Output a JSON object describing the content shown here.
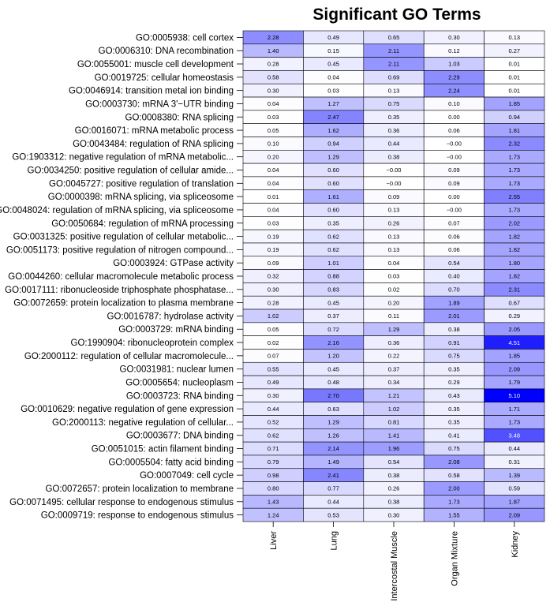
{
  "chart_data": {
    "type": "heatmap",
    "title": "Significant GO Terms",
    "columns": [
      "Liver",
      "Lung",
      "Intercostal Muscle",
      "Organ Mixture",
      "Kidney"
    ],
    "rows": [
      {
        "label": "GO:0005938: cell cortex",
        "values": [
          "2.28",
          "0.49",
          "0.65",
          "0.30",
          "0.13"
        ]
      },
      {
        "label": "GO:0006310: DNA recombination",
        "values": [
          "1.40",
          "0.15",
          "2.11",
          "0.12",
          "0.27"
        ]
      },
      {
        "label": "GO:0055001: muscle cell development",
        "values": [
          "0.28",
          "0.45",
          "2.11",
          "1.03",
          "0.01"
        ]
      },
      {
        "label": "GO:0019725: cellular homeostasis",
        "values": [
          "0.58",
          "0.04",
          "0.69",
          "2.29",
          "0.01"
        ]
      },
      {
        "label": "GO:0046914: transition metal ion binding",
        "values": [
          "0.30",
          "0.03",
          "0.13",
          "2.24",
          "0.01"
        ]
      },
      {
        "label": "GO:0003730: mRNA 3'−UTR binding",
        "values": [
          "0.04",
          "1.27",
          "0.75",
          "0.10",
          "1.85"
        ]
      },
      {
        "label": "GO:0008380: RNA splicing",
        "values": [
          "0.03",
          "2.47",
          "0.35",
          "0.00",
          "0.94"
        ]
      },
      {
        "label": "GO:0016071: mRNA metabolic process",
        "values": [
          "0.05",
          "1.62",
          "0.36",
          "0.06",
          "1.81"
        ]
      },
      {
        "label": "GO:0043484: regulation of RNA splicing",
        "values": [
          "0.10",
          "0.94",
          "0.44",
          "−0.00",
          "2.32"
        ]
      },
      {
        "label": "GO:1903312: negative regulation of mRNA metabolic...",
        "values": [
          "0.20",
          "1.29",
          "0.38",
          "−0.00",
          "1.73"
        ]
      },
      {
        "label": "GO:0034250: positive regulation of cellular amide...",
        "values": [
          "0.04",
          "0.60",
          "−0.00",
          "0.09",
          "1.73"
        ]
      },
      {
        "label": "GO:0045727: positive regulation of translation",
        "values": [
          "0.04",
          "0.60",
          "−0.00",
          "0.09",
          "1.73"
        ]
      },
      {
        "label": "GO:0000398: mRNA splicing, via spliceosome",
        "values": [
          "0.01",
          "1.61",
          "0.09",
          "0.00",
          "2.55"
        ]
      },
      {
        "label": "GO:0048024: regulation of mRNA splicing, via spliceosome",
        "values": [
          "0.04",
          "0.60",
          "0.13",
          "−0.00",
          "1.73"
        ]
      },
      {
        "label": "GO:0050684: regulation of mRNA processing",
        "values": [
          "0.03",
          "0.35",
          "0.26",
          "0.07",
          "2.02"
        ]
      },
      {
        "label": "GO:0031325: positive regulation of cellular metabolic...",
        "values": [
          "0.19",
          "0.62",
          "0.13",
          "0.06",
          "1.82"
        ]
      },
      {
        "label": "GO:0051173: positive regulation of nitrogen compound...",
        "values": [
          "0.19",
          "0.62",
          "0.13",
          "0.06",
          "1.82"
        ]
      },
      {
        "label": "GO:0003924: GTPase activity",
        "values": [
          "0.09",
          "1.01",
          "0.04",
          "0.54",
          "1.80"
        ]
      },
      {
        "label": "GO:0044260: cellular macromolecule metabolic process",
        "values": [
          "0.32",
          "0.88",
          "0.03",
          "0.40",
          "1.82"
        ]
      },
      {
        "label": "GO:0017111: ribonucleoside triphosphate phosphatase...",
        "values": [
          "0.30",
          "0.83",
          "0.02",
          "0.70",
          "2.31"
        ]
      },
      {
        "label": "GO:0072659: protein localization to plasma membrane",
        "values": [
          "0.28",
          "0.45",
          "0.20",
          "1.89",
          "0.67"
        ]
      },
      {
        "label": "GO:0016787: hydrolase activity",
        "values": [
          "1.02",
          "0.37",
          "0.11",
          "2.01",
          "0.29"
        ]
      },
      {
        "label": "GO:0003729: mRNA binding",
        "values": [
          "0.05",
          "0.72",
          "1.29",
          "0.38",
          "2.05"
        ]
      },
      {
        "label": "GO:1990904: ribonucleoprotein complex",
        "values": [
          "0.02",
          "2.16",
          "0.36",
          "0.91",
          "4.51"
        ]
      },
      {
        "label": "GO:2000112: regulation of cellular macromolecule...",
        "values": [
          "0.07",
          "1.20",
          "0.22",
          "0.75",
          "1.85"
        ]
      },
      {
        "label": "GO:0031981: nuclear lumen",
        "values": [
          "0.55",
          "0.45",
          "0.37",
          "0.35",
          "2.09"
        ]
      },
      {
        "label": "GO:0005654: nucleoplasm",
        "values": [
          "0.49",
          "0.48",
          "0.34",
          "0.29",
          "1.79"
        ]
      },
      {
        "label": "GO:0003723: RNA binding",
        "values": [
          "0.30",
          "2.70",
          "1.21",
          "0.43",
          "5.10"
        ]
      },
      {
        "label": "GO:0010629: negative regulation of gene expression",
        "values": [
          "0.44",
          "0.63",
          "1.02",
          "0.35",
          "1.71"
        ]
      },
      {
        "label": "GO:2000113: negative regulation of cellular...",
        "values": [
          "0.52",
          "1.29",
          "0.81",
          "0.35",
          "1.73"
        ]
      },
      {
        "label": "GO:0003677: DNA binding",
        "values": [
          "0.62",
          "1.26",
          "1.41",
          "0.41",
          "3.48"
        ]
      },
      {
        "label": "GO:0051015: actin filament binding",
        "values": [
          "0.71",
          "2.14",
          "1.96",
          "0.75",
          "0.44"
        ]
      },
      {
        "label": "GO:0005504: fatty acid binding",
        "values": [
          "0.79",
          "1.49",
          "0.54",
          "2.08",
          "0.31"
        ]
      },
      {
        "label": "GO:0007049: cell cycle",
        "values": [
          "0.98",
          "2.41",
          "0.38",
          "0.58",
          "1.39"
        ]
      },
      {
        "label": "GO:0072657: protein localization to membrane",
        "values": [
          "0.80",
          "0.77",
          "0.26",
          "2.00",
          "0.59"
        ]
      },
      {
        "label": "GO:0071495: cellular response to endogenous stimulus",
        "values": [
          "1.43",
          "0.44",
          "0.38",
          "1.73",
          "1.87"
        ]
      },
      {
        "label": "GO:0009719: response to endogenous stimulus",
        "values": [
          "1.24",
          "0.53",
          "0.30",
          "1.55",
          "2.09"
        ]
      }
    ],
    "value_range": [
      0,
      5.1
    ],
    "colors": {
      "low": "#ffffff",
      "high": "#0000ff",
      "text_dark": "#000000",
      "text_light": "#ffffff",
      "grid": "#000000"
    },
    "legend": "none"
  }
}
